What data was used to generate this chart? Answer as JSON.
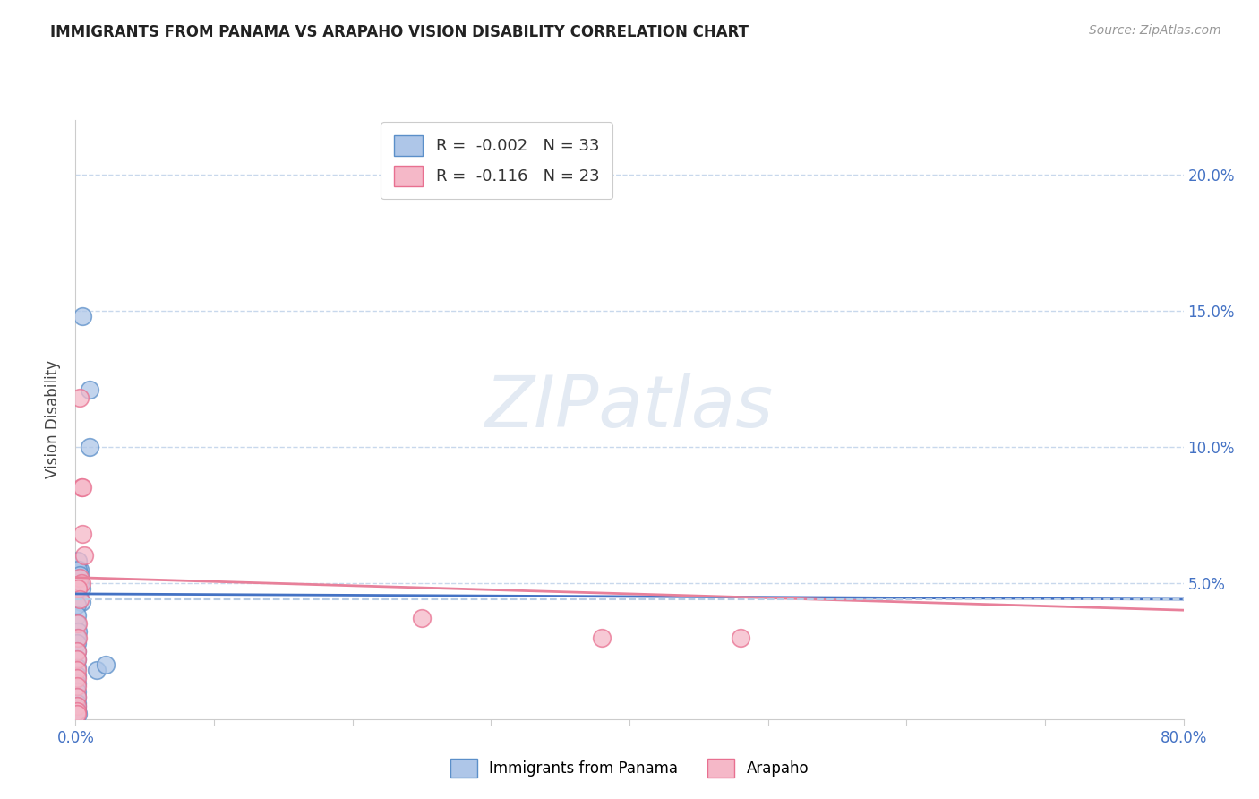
{
  "title": "IMMIGRANTS FROM PANAMA VS ARAPAHO VISION DISABILITY CORRELATION CHART",
  "source": "Source: ZipAtlas.com",
  "ylabel": "Vision Disability",
  "legend_label1": "Immigrants from Panama",
  "legend_label2": "Arapaho",
  "legend_r1": "-0.002",
  "legend_n1": "33",
  "legend_r2": "-0.116",
  "legend_n2": "23",
  "blue_face_color": "#aec6e8",
  "blue_edge_color": "#5b8fc9",
  "pink_face_color": "#f5b8c8",
  "pink_edge_color": "#e87090",
  "blue_line_color": "#4472c4",
  "pink_line_color": "#e8809a",
  "dashed_line_color": "#b8cce4",
  "right_axis_color": "#4472c4",
  "grid_color": "#c8d8ec",
  "background_color": "#ffffff",
  "xlim": [
    0.0,
    0.8
  ],
  "ylim": [
    0.0,
    0.22
  ],
  "yticks": [
    0.05,
    0.1,
    0.15,
    0.2
  ],
  "ytick_labels": [
    "5.0%",
    "10.0%",
    "15.0%",
    "20.0%"
  ],
  "blue_scatter_x": [
    0.005,
    0.01,
    0.01,
    0.002,
    0.003,
    0.003,
    0.004,
    0.004,
    0.002,
    0.002,
    0.003,
    0.001,
    0.001,
    0.001,
    0.002,
    0.001,
    0.001,
    0.001,
    0.001,
    0.001,
    0.001,
    0.001,
    0.001,
    0.001,
    0.001,
    0.001,
    0.001,
    0.001,
    0.001,
    0.001,
    0.002,
    0.015,
    0.022
  ],
  "blue_scatter_y": [
    0.148,
    0.121,
    0.1,
    0.052,
    0.055,
    0.05,
    0.048,
    0.043,
    0.058,
    0.055,
    0.053,
    0.042,
    0.038,
    0.035,
    0.032,
    0.03,
    0.028,
    0.025,
    0.022,
    0.019,
    0.016,
    0.013,
    0.01,
    0.008,
    0.006,
    0.005,
    0.004,
    0.003,
    0.003,
    0.003,
    0.002,
    0.018,
    0.02
  ],
  "pink_scatter_x": [
    0.003,
    0.004,
    0.005,
    0.005,
    0.006,
    0.003,
    0.004,
    0.002,
    0.003,
    0.25,
    0.38,
    0.48,
    0.002,
    0.002,
    0.001,
    0.001,
    0.001,
    0.001,
    0.001,
    0.001,
    0.001,
    0.001,
    0.001
  ],
  "pink_scatter_y": [
    0.118,
    0.085,
    0.085,
    0.068,
    0.06,
    0.052,
    0.05,
    0.048,
    0.044,
    0.037,
    0.03,
    0.03,
    0.035,
    0.03,
    0.025,
    0.022,
    0.018,
    0.015,
    0.012,
    0.008,
    0.005,
    0.003,
    0.002
  ],
  "blue_trend_x": [
    0.0,
    0.8
  ],
  "blue_trend_y": [
    0.046,
    0.044
  ],
  "pink_trend_x": [
    0.0,
    0.8
  ],
  "pink_trend_y": [
    0.052,
    0.04
  ],
  "dashed_trend_x": [
    0.0,
    0.8
  ],
  "dashed_trend_y": [
    0.044,
    0.044
  ],
  "watermark_text": "ZIPatlas",
  "watermark_color": "#cddaea",
  "watermark_alpha": 0.55
}
